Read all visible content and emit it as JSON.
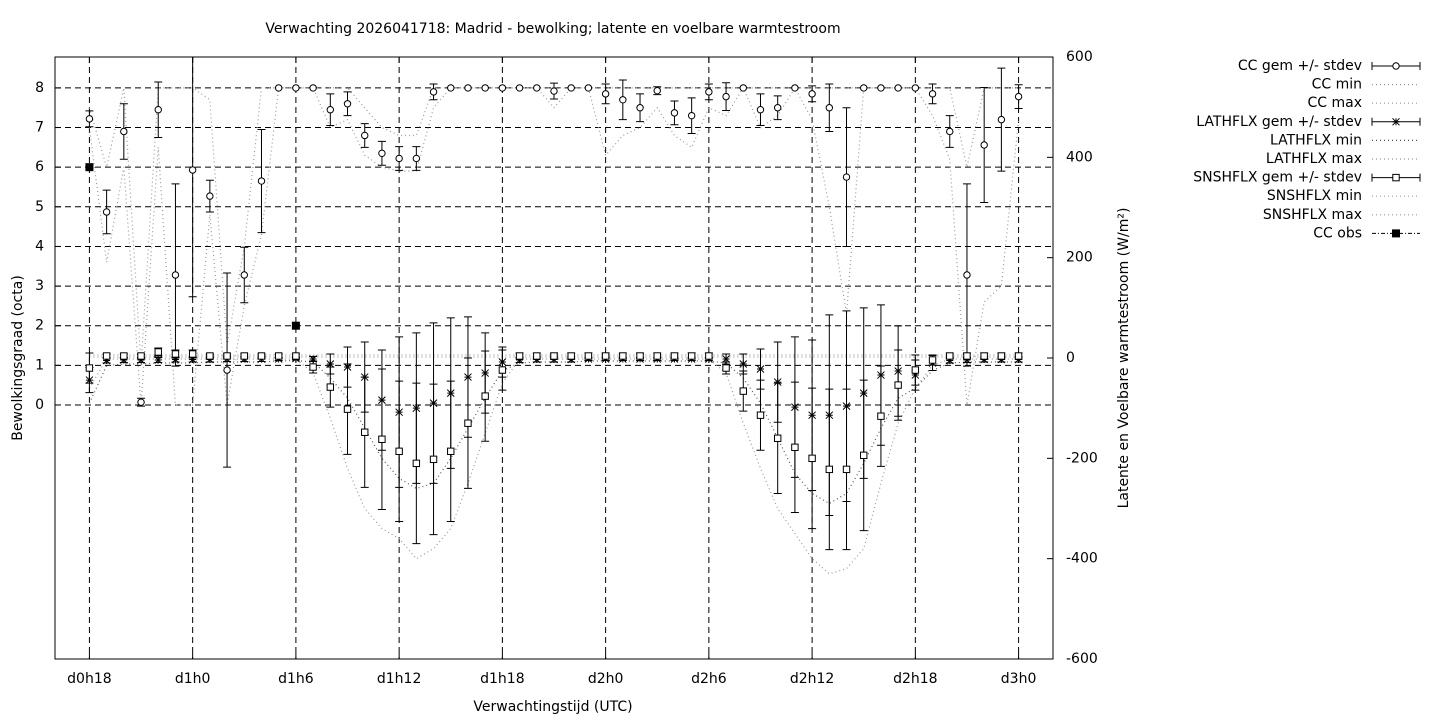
{
  "chart_data": {
    "type": "errorbar",
    "title": "Verwachting 2026041718: Madrid - bewolking; latente en voelbare warmtestroom",
    "x_label": "Verwachtingstijd (UTC)",
    "y_label": "Bewolkingsgraad (octa)",
    "y2_label": "Latente en Voelbare warmtestroom (W/m²)",
    "x": [
      18,
      19,
      20,
      21,
      22,
      23,
      24,
      25,
      26,
      27,
      28,
      29,
      30,
      31,
      32,
      33,
      34,
      35,
      36,
      37,
      38,
      39,
      40,
      41,
      42,
      43,
      44,
      45,
      46,
      47,
      48,
      49,
      50,
      51,
      52,
      53,
      54,
      55,
      56,
      57,
      58,
      59,
      60,
      61,
      62,
      63,
      64,
      65,
      66,
      67,
      68,
      69,
      70,
      71,
      72
    ],
    "xlim": [
      16,
      74
    ],
    "xticks": [
      {
        "value": 18,
        "label": "d0h18"
      },
      {
        "value": 24,
        "label": "d1h0"
      },
      {
        "value": 30,
        "label": "d1h6"
      },
      {
        "value": 36,
        "label": "d1h12"
      },
      {
        "value": 42,
        "label": "d1h18"
      },
      {
        "value": 48,
        "label": "d2h0"
      },
      {
        "value": 54,
        "label": "d2h6"
      },
      {
        "value": 60,
        "label": "d2h12"
      },
      {
        "value": 66,
        "label": "d2h18"
      },
      {
        "value": 72,
        "label": "d3h0"
      }
    ],
    "ylim": [
      -6.41,
      8.78
    ],
    "yticks": [
      0,
      1,
      2,
      3,
      4,
      5,
      6,
      7,
      8
    ],
    "y2lim": [
      -600,
      600
    ],
    "y2ticks": [
      -600,
      -400,
      -200,
      0,
      200,
      400,
      600
    ],
    "grid": true,
    "legend": "right",
    "series": [
      {
        "name": "CC gem +/- stdev",
        "color": "#000000",
        "style": "errorbars",
        "marker": "circle",
        "axis": "y",
        "values": [
          7.22,
          4.87,
          6.9,
          0.07,
          7.45,
          3.28,
          5.93,
          5.27,
          0.88,
          3.28,
          5.65,
          8,
          8,
          8,
          7.45,
          7.6,
          6.8,
          6.35,
          6.22,
          6.22,
          7.9,
          8,
          8,
          8,
          8,
          8,
          8,
          7.92,
          8,
          8,
          7.85,
          7.7,
          7.5,
          7.93,
          7.37,
          7.3,
          7.9,
          7.78,
          8,
          7.45,
          7.5,
          8,
          7.85,
          7.5,
          5.75,
          8,
          8,
          8,
          8,
          7.85,
          6.9,
          3.28,
          6.56,
          7.2,
          7.78
        ],
        "errors": [
          0.2,
          0.55,
          0.7,
          0.1,
          0.7,
          2.3,
          3.2,
          0.4,
          2.45,
          0.7,
          1.3,
          0,
          0,
          0,
          0.4,
          0.3,
          0.3,
          0.3,
          0.3,
          0.3,
          0.2,
          0,
          0,
          0,
          0,
          0,
          0,
          0.2,
          0,
          0,
          0.25,
          0.5,
          0.35,
          0.1,
          0.3,
          0.45,
          0.2,
          0.35,
          0,
          0.4,
          0.3,
          0,
          0.2,
          0.6,
          1.75,
          0,
          0,
          0,
          0,
          0.25,
          0.4,
          2.3,
          1.45,
          1.3,
          0.3
        ]
      },
      {
        "name": "CC min",
        "color": "#999999",
        "style": "line",
        "axis": "y",
        "values": [
          7,
          3.6,
          6,
          0,
          6.5,
          0,
          0,
          4.8,
          0,
          2.5,
          4.3,
          8,
          8,
          8,
          7,
          7.2,
          6.3,
          6,
          5.9,
          5.9,
          7.5,
          8,
          8,
          8,
          8,
          8,
          8,
          7.5,
          8,
          8,
          6.3,
          6.8,
          7,
          7.5,
          6.8,
          6.5,
          7.5,
          7.3,
          8,
          7,
          7.3,
          8,
          7.2,
          5,
          2.3,
          8,
          8,
          8,
          8,
          7.3,
          6.2,
          0,
          2.6,
          3,
          7.2
        ]
      },
      {
        "name": "CC max",
        "color": "#999999",
        "style": "line",
        "axis": "y",
        "values": [
          7.5,
          6,
          8,
          1,
          8,
          8,
          8,
          7.7,
          1.5,
          4,
          8,
          8,
          8,
          8,
          8,
          8,
          7.5,
          7,
          6.8,
          6.8,
          8,
          8,
          8,
          8,
          8,
          8,
          8,
          8,
          8,
          8,
          8,
          8,
          8,
          8,
          8,
          8,
          8,
          8,
          8,
          8,
          8,
          8,
          8,
          8,
          8,
          8,
          8,
          8,
          8,
          8,
          8,
          6,
          8,
          8,
          8
        ]
      },
      {
        "name": "LATHFLX gem +/- stdev",
        "color": "#000000",
        "style": "errorbars",
        "marker": "star",
        "axis": "y2",
        "values": [
          -44,
          -5,
          -4,
          -4,
          -4,
          -3,
          -3,
          -3,
          -2,
          -2,
          -2,
          -2,
          -1,
          -2,
          -12,
          -18,
          -38,
          -84,
          -108,
          -100,
          -90,
          -70,
          -38,
          -30,
          -8,
          -4,
          -3,
          -3,
          -3,
          -2,
          -2,
          -2,
          -2,
          -2,
          -2,
          -2,
          -2,
          -2,
          -12,
          -22,
          -48,
          -98,
          -114,
          -114,
          -96,
          -70,
          -34,
          -26,
          -34,
          -10,
          -5,
          -4,
          -3,
          -3,
          -3
        ],
        "errors": [
          25,
          5,
          5,
          5,
          5,
          5,
          5,
          5,
          5,
          5,
          5,
          3,
          3,
          5,
          20,
          40,
          70,
          100,
          150,
          150,
          160,
          150,
          120,
          80,
          30,
          5,
          5,
          5,
          5,
          3,
          3,
          3,
          3,
          3,
          3,
          3,
          3,
          10,
          20,
          40,
          80,
          140,
          150,
          200,
          190,
          170,
          140,
          90,
          30,
          15,
          5,
          5,
          5,
          5,
          5
        ]
      },
      {
        "name": "LATHFLX min",
        "color": "#555555",
        "style": "line",
        "axis": "y2",
        "values": [
          -90,
          -15,
          -12,
          -12,
          -10,
          -10,
          -10,
          -8,
          -8,
          -8,
          -8,
          -6,
          -5,
          -8,
          -40,
          -80,
          -140,
          -200,
          -240,
          -260,
          -250,
          -200,
          -140,
          -80,
          -25,
          -10,
          -8,
          -8,
          -8,
          -6,
          -6,
          -6,
          -6,
          -6,
          -6,
          -6,
          -6,
          -10,
          -40,
          -90,
          -160,
          -230,
          -270,
          -290,
          -270,
          -210,
          -140,
          -80,
          -60,
          -25,
          -10,
          -8,
          -8,
          -8,
          -8
        ]
      },
      {
        "name": "LATHFLX max",
        "color": "#999999",
        "style": "line",
        "axis": "y2",
        "values": [
          2,
          2,
          2,
          2,
          2,
          2,
          2,
          2,
          2,
          2,
          2,
          2,
          2,
          2,
          2,
          2,
          2,
          2,
          2,
          2,
          2,
          2,
          2,
          2,
          2,
          2,
          2,
          2,
          2,
          2,
          2,
          2,
          2,
          2,
          2,
          2,
          2,
          2,
          2,
          2,
          2,
          2,
          2,
          2,
          2,
          2,
          2,
          2,
          2,
          2,
          2,
          2,
          2,
          2,
          2
        ]
      },
      {
        "name": "SNSHFLX gem +/- stdev",
        "color": "#000000",
        "style": "errorbars",
        "marker": "square",
        "axis": "y2",
        "values": [
          -20,
          4,
          4,
          4,
          12,
          8,
          8,
          4,
          4,
          4,
          4,
          4,
          4,
          -18,
          -58,
          -102,
          -148,
          -162,
          -186,
          -210,
          -202,
          -186,
          -130,
          -76,
          -24,
          4,
          4,
          4,
          4,
          4,
          4,
          4,
          4,
          4,
          4,
          4,
          4,
          -20,
          -66,
          -114,
          -160,
          -178,
          -200,
          -222,
          -222,
          -194,
          -116,
          -54,
          -24,
          -4,
          4,
          4,
          4,
          4,
          4
        ],
        "errors": [
          30,
          4,
          4,
          4,
          8,
          8,
          8,
          4,
          4,
          4,
          4,
          4,
          4,
          12,
          40,
          90,
          110,
          140,
          140,
          160,
          150,
          140,
          130,
          90,
          40,
          6,
          6,
          6,
          6,
          6,
          6,
          6,
          6,
          6,
          6,
          6,
          6,
          12,
          40,
          70,
          110,
          130,
          140,
          160,
          160,
          150,
          100,
          70,
          30,
          10,
          6,
          6,
          6,
          6,
          6
        ]
      },
      {
        "name": "SNSHFLX min",
        "color": "#999999",
        "style": "line",
        "axis": "y2",
        "values": [
          -60,
          -2,
          -2,
          -2,
          -2,
          -2,
          -2,
          -2,
          -2,
          -2,
          -2,
          -2,
          -2,
          -30,
          -120,
          -220,
          -300,
          -340,
          -360,
          -400,
          -380,
          -340,
          -250,
          -150,
          -50,
          -2,
          -2,
          -2,
          -2,
          -2,
          -2,
          -2,
          -2,
          -2,
          -2,
          -2,
          -2,
          -30,
          -130,
          -220,
          -300,
          -350,
          -400,
          -430,
          -420,
          -380,
          -250,
          -130,
          -60,
          -15,
          -2,
          -2,
          -2,
          -2,
          -2
        ]
      },
      {
        "name": "SNSHFLX max",
        "color": "#999999",
        "style": "line",
        "axis": "y2",
        "values": [
          6,
          6,
          6,
          6,
          6,
          6,
          6,
          6,
          6,
          6,
          6,
          6,
          6,
          6,
          6,
          6,
          6,
          6,
          6,
          6,
          6,
          6,
          6,
          6,
          6,
          6,
          6,
          6,
          6,
          6,
          6,
          6,
          6,
          6,
          6,
          6,
          6,
          6,
          6,
          6,
          6,
          6,
          6,
          6,
          6,
          6,
          6,
          6,
          6,
          6,
          6,
          6,
          6,
          6,
          6
        ]
      },
      {
        "name": "CC obs",
        "color": "#000000",
        "style": "points",
        "marker": "filled-square",
        "axis": "y",
        "values": [
          6,
          null,
          null,
          null,
          null,
          null,
          null,
          null,
          null,
          null,
          null,
          null,
          2,
          null,
          null,
          null,
          null,
          null,
          null,
          null,
          null,
          null,
          null,
          null,
          null,
          null,
          null,
          null,
          null,
          null,
          null,
          null,
          null,
          null,
          null,
          null,
          null,
          null,
          null,
          null,
          null,
          null,
          null,
          null,
          null,
          null,
          null,
          null,
          null,
          null,
          null,
          null,
          null,
          null,
          null
        ]
      }
    ]
  }
}
